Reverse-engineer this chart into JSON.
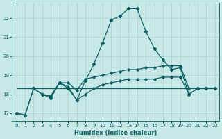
{
  "xlabel": "Humidex (Indice chaleur)",
  "xlim": [
    -0.5,
    23.5
  ],
  "ylim": [
    16.6,
    22.8
  ],
  "xticks": [
    0,
    1,
    2,
    3,
    4,
    5,
    6,
    7,
    8,
    9,
    10,
    11,
    12,
    13,
    14,
    15,
    16,
    17,
    18,
    19,
    20,
    21,
    22,
    23
  ],
  "yticks": [
    17,
    18,
    19,
    20,
    21,
    22
  ],
  "background_color": "#c8e8e8",
  "grid_color": "#a8cccc",
  "line_color": "#0a6060",
  "series_main": {
    "x": [
      0,
      1,
      2,
      3,
      4,
      5,
      6,
      7,
      8,
      9,
      10,
      11,
      12,
      13,
      14,
      15,
      16,
      17,
      18,
      19,
      20,
      21,
      22,
      23
    ],
    "y": [
      17.0,
      16.9,
      18.3,
      18.0,
      17.8,
      18.6,
      18.3,
      17.7,
      18.7,
      19.6,
      20.7,
      21.9,
      22.1,
      22.5,
      22.5,
      21.3,
      20.4,
      19.8,
      19.3,
      19.4,
      18.0,
      18.3,
      18.3,
      18.3
    ]
  },
  "series_flat": {
    "x": [
      0,
      1,
      2,
      3,
      4,
      5,
      6,
      7,
      8,
      9,
      10,
      11,
      12,
      13,
      14,
      15,
      16,
      17,
      18,
      19,
      20,
      21,
      22,
      23
    ],
    "y": [
      18.3,
      18.3,
      18.3,
      18.3,
      18.3,
      18.3,
      18.3,
      18.3,
      18.3,
      18.3,
      18.3,
      18.3,
      18.3,
      18.3,
      18.3,
      18.3,
      18.3,
      18.3,
      18.3,
      18.3,
      18.3,
      18.3,
      18.3,
      18.3
    ]
  },
  "series_slow": {
    "x": [
      0,
      1,
      2,
      3,
      4,
      5,
      6,
      7,
      8,
      9,
      10,
      11,
      12,
      13,
      14,
      15,
      16,
      17,
      18,
      19,
      20,
      21,
      22,
      23
    ],
    "y": [
      17.0,
      16.9,
      18.3,
      18.0,
      17.9,
      18.6,
      18.6,
      18.2,
      18.8,
      18.9,
      19.0,
      19.1,
      19.2,
      19.3,
      19.3,
      19.4,
      19.4,
      19.5,
      19.5,
      19.5,
      18.3,
      18.3,
      18.3,
      18.3
    ]
  },
  "series_zigzag": {
    "x": [
      2,
      3,
      4,
      5,
      6,
      7,
      8,
      9,
      10,
      11,
      12,
      13,
      14,
      15,
      16,
      17,
      18,
      19,
      20,
      21,
      22,
      23
    ],
    "y": [
      18.3,
      18.0,
      17.9,
      18.6,
      18.4,
      17.7,
      18.0,
      18.3,
      18.5,
      18.6,
      18.7,
      18.8,
      18.8,
      18.8,
      18.8,
      18.9,
      18.9,
      18.9,
      18.0,
      18.3,
      18.3,
      18.3
    ]
  }
}
